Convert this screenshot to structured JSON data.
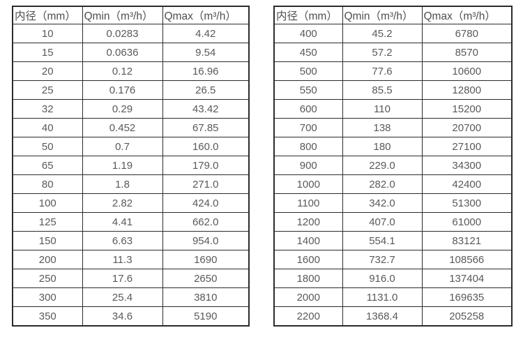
{
  "colors": {
    "background": "#ffffff",
    "border": "#2b2b2b",
    "text": "#595959"
  },
  "tables": [
    {
      "name": "flow-table-left",
      "headers": [
        "内径（mm）",
        "Qmin（m³/h）",
        "Qmax（m³/h）"
      ],
      "rows": [
        [
          "10",
          "0.0283",
          "4.42"
        ],
        [
          "15",
          "0.0636",
          "9.54"
        ],
        [
          "20",
          "0.12",
          "16.96"
        ],
        [
          "25",
          "0.176",
          "26.5"
        ],
        [
          "32",
          "0.29",
          "43.42"
        ],
        [
          "40",
          "0.452",
          "67.85"
        ],
        [
          "50",
          "0.7",
          "160.0"
        ],
        [
          "65",
          "1.19",
          "179.0"
        ],
        [
          "80",
          "1.8",
          "271.0"
        ],
        [
          "100",
          "2.82",
          "424.0"
        ],
        [
          "125",
          "4.41",
          "662.0"
        ],
        [
          "150",
          "6.63",
          "954.0"
        ],
        [
          "200",
          "11.3",
          "1690"
        ],
        [
          "250",
          "17.6",
          "2650"
        ],
        [
          "300",
          "25.4",
          "3810"
        ],
        [
          "350",
          "34.6",
          "5190"
        ]
      ]
    },
    {
      "name": "flow-table-right",
      "headers": [
        "内径（mm）",
        "Qmin（m³/h）",
        "Qmax（m³/h）"
      ],
      "rows": [
        [
          "400",
          "45.2",
          "6780"
        ],
        [
          "450",
          "57.2",
          "8570"
        ],
        [
          "500",
          "77.6",
          "10600"
        ],
        [
          "550",
          "85.5",
          "12800"
        ],
        [
          "600",
          "110",
          "15200"
        ],
        [
          "700",
          "138",
          "20700"
        ],
        [
          "800",
          "180",
          "27100"
        ],
        [
          "900",
          "229.0",
          "34300"
        ],
        [
          "1000",
          "282.0",
          "42400"
        ],
        [
          "1100",
          "342.0",
          "51300"
        ],
        [
          "1200",
          "407.0",
          "61000"
        ],
        [
          "1400",
          "554.1",
          "83121"
        ],
        [
          "1600",
          "732.7",
          "108566"
        ],
        [
          "1800",
          "916.0",
          "137404"
        ],
        [
          "2000",
          "1131.0",
          "169635"
        ],
        [
          "2200",
          "1368.4",
          "205258"
        ]
      ]
    }
  ]
}
